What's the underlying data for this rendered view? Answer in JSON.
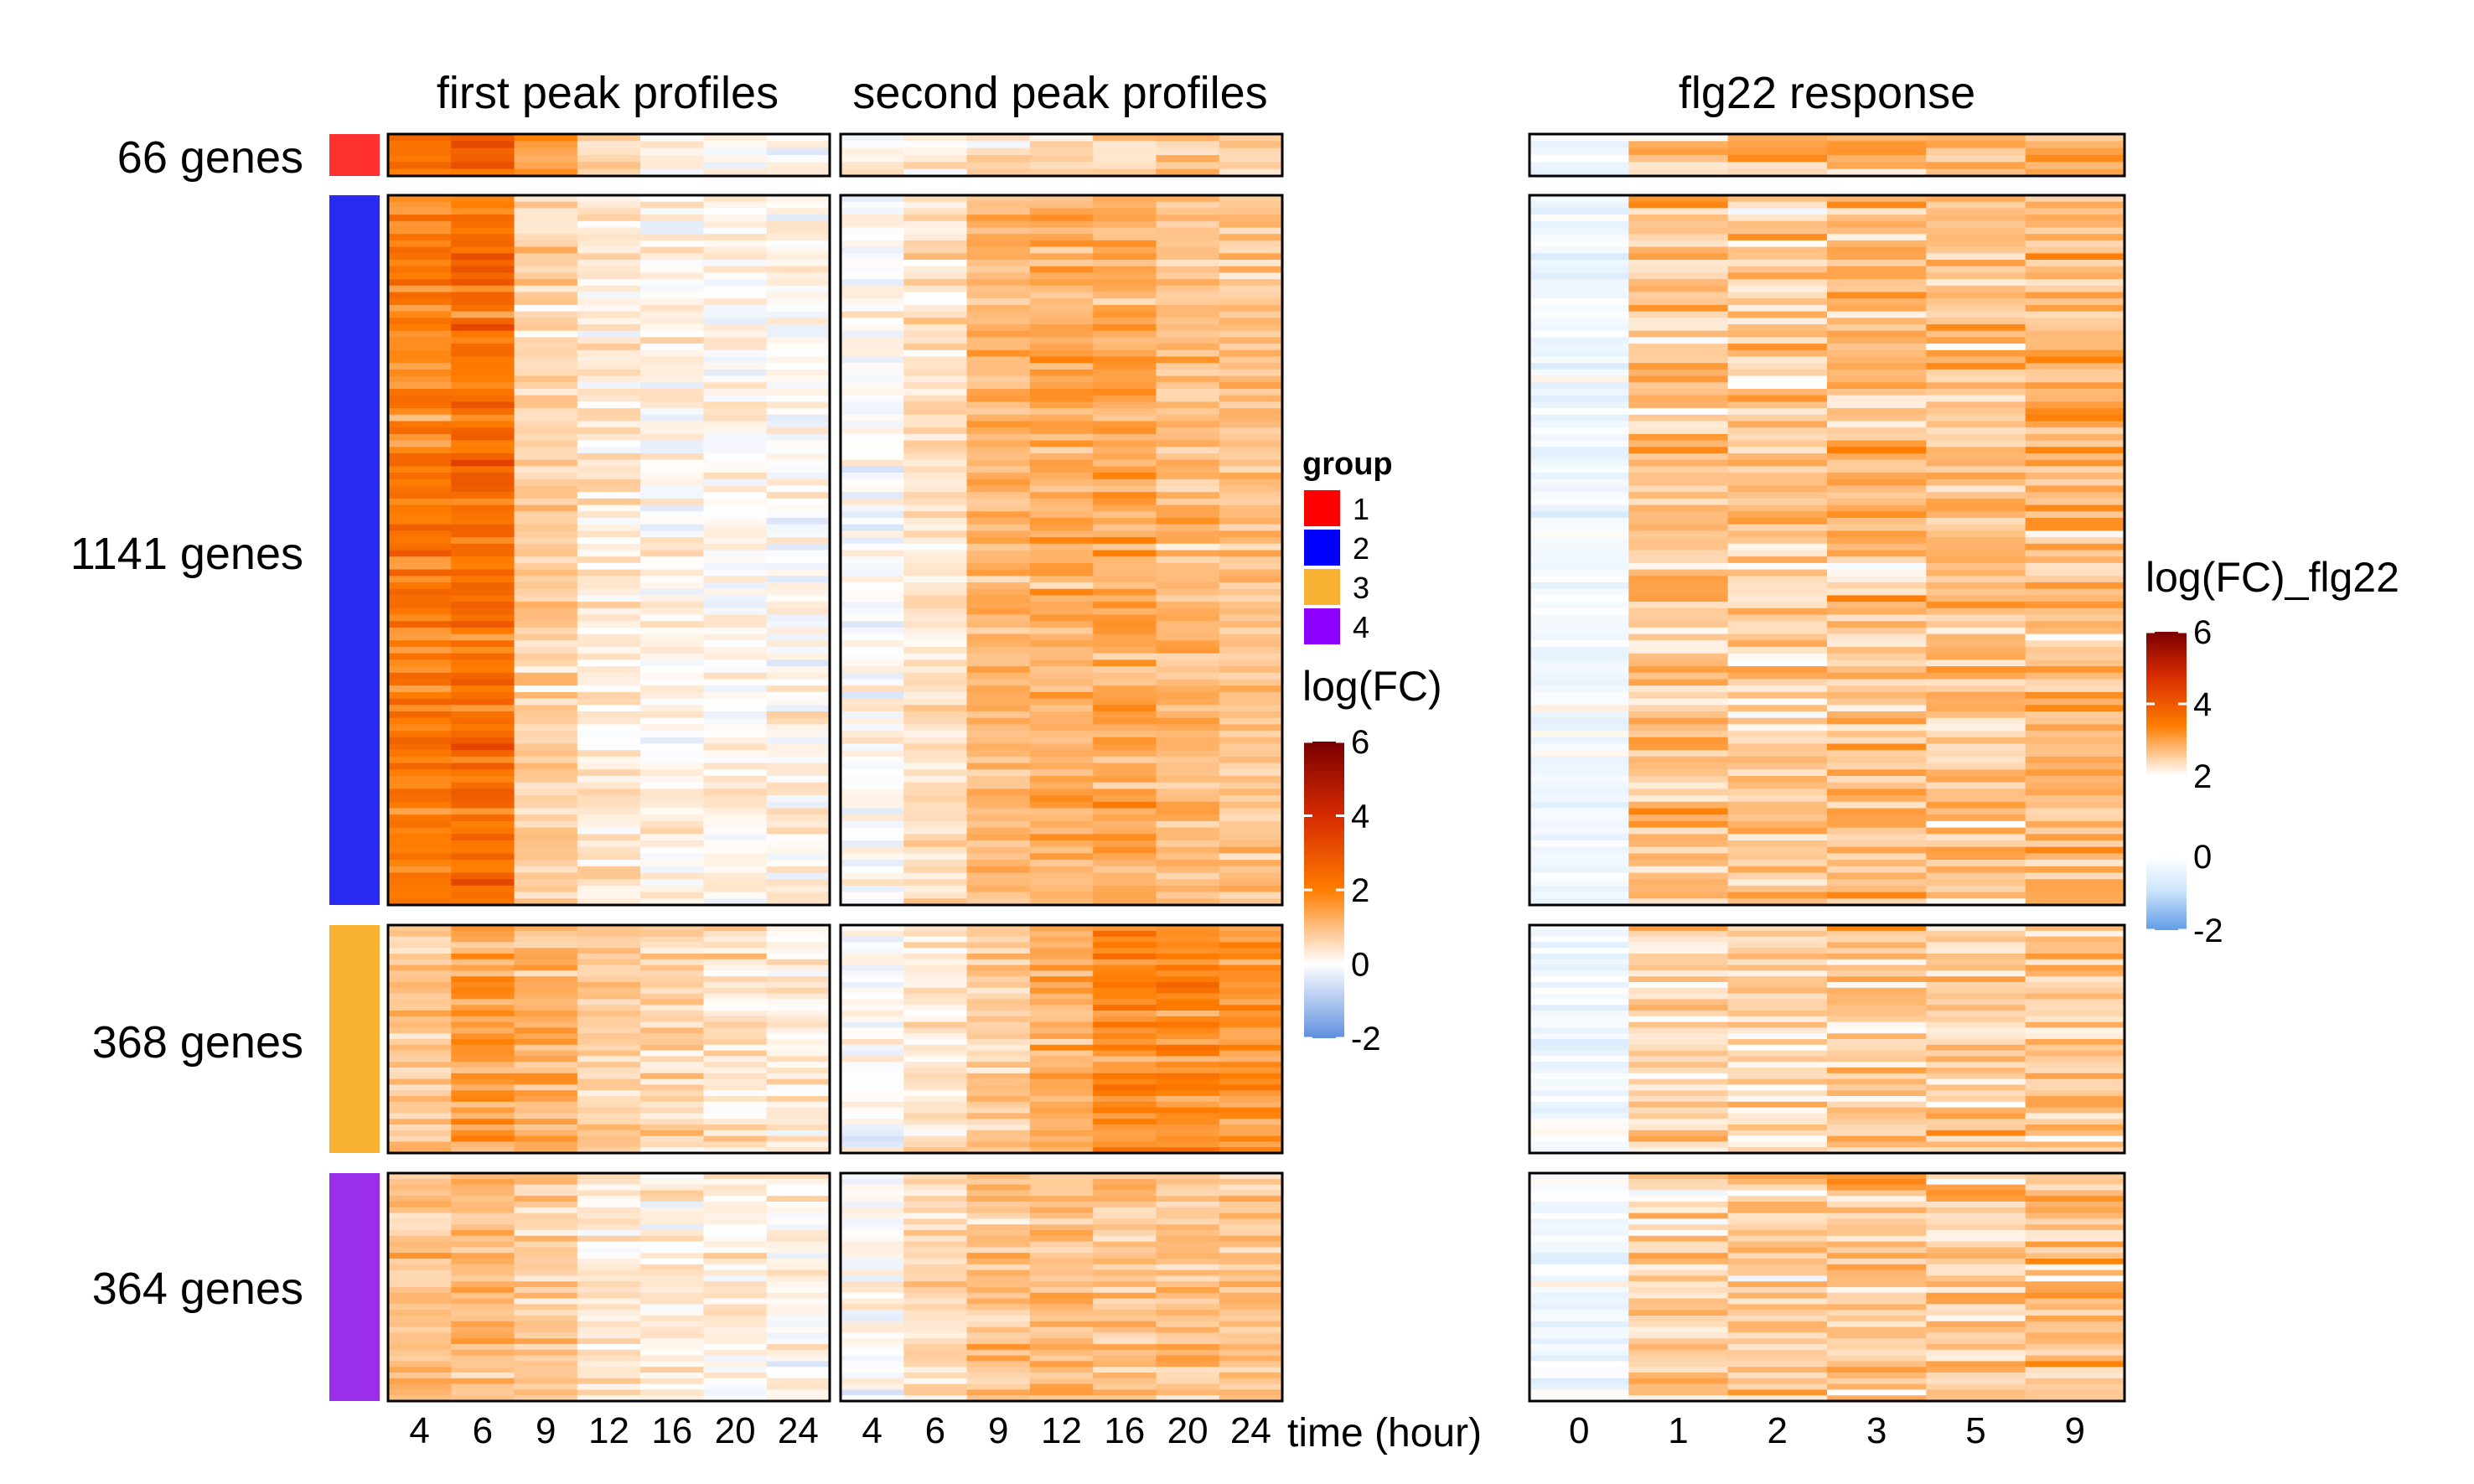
{
  "chart_data": {
    "type": "heatmap",
    "panel_titles": {
      "first": "first peak profiles",
      "second": "second peak profiles",
      "flg22": "flg22 response"
    },
    "x_label": "time (hour)",
    "x_peak": [
      "4",
      "6",
      "9",
      "12",
      "16",
      "20",
      "24"
    ],
    "x_flg22": [
      "0",
      "1",
      "2",
      "3",
      "5",
      "9"
    ],
    "rows": [
      {
        "group": "1",
        "label": "66 genes",
        "genes": 66,
        "color": "#ff3030",
        "first_mean": [
          2.2,
          2.6,
          1.4,
          0.6,
          0.2,
          0.1,
          0.05
        ],
        "second_mean": [
          0.1,
          0.3,
          0.5,
          0.5,
          0.7,
          0.8,
          0.8
        ],
        "flg22_mean": [
          -0.3,
          1.0,
          1.1,
          1.3,
          1.2,
          1.3
        ]
      },
      {
        "group": "2",
        "label": "1141 genes",
        "genes": 1141,
        "color": "#2a2af2",
        "first_mean": [
          2.0,
          2.3,
          0.7,
          0.3,
          0.15,
          0.1,
          0.1
        ],
        "second_mean": [
          0.05,
          0.5,
          1.1,
          1.2,
          1.3,
          1.0,
          0.9
        ],
        "flg22_mean": [
          -0.4,
          0.9,
          0.8,
          1.0,
          1.0,
          1.1
        ]
      },
      {
        "group": "3",
        "label": "368 genes",
        "genes": 368,
        "color": "#f9b233",
        "first_mean": [
          0.8,
          1.4,
          1.2,
          0.8,
          0.6,
          0.4,
          0.3
        ],
        "second_mean": [
          0.0,
          0.3,
          0.8,
          1.3,
          1.8,
          1.8,
          1.6
        ],
        "flg22_mean": [
          -0.4,
          0.6,
          0.6,
          0.8,
          0.8,
          0.8
        ]
      },
      {
        "group": "4",
        "label": "364 genes",
        "genes": 364,
        "color": "#9b2ee8",
        "first_mean": [
          0.9,
          1.1,
          0.8,
          0.4,
          0.25,
          0.2,
          0.15
        ],
        "second_mean": [
          0.0,
          0.6,
          0.9,
          1.0,
          1.0,
          1.0,
          1.0
        ],
        "flg22_mean": [
          -0.2,
          0.7,
          0.7,
          0.9,
          0.8,
          0.8
        ]
      }
    ],
    "legend_group": {
      "title": "group",
      "items": [
        {
          "label": "1",
          "color": "#ff0000"
        },
        {
          "label": "2",
          "color": "#0000ff"
        },
        {
          "label": "3",
          "color": "#f9b233"
        },
        {
          "label": "4",
          "color": "#8b00ff"
        }
      ]
    },
    "legend_fc": {
      "title": "log(FC)",
      "ticks": [
        "6",
        "4",
        "2",
        "0",
        "-2"
      ],
      "range": [
        -2,
        6
      ],
      "stops": [
        "#5f8fe0",
        "#ffffff",
        "#ff7d00",
        "#d62a00",
        "#7a0000"
      ]
    },
    "legend_flg22": {
      "title": "log(FC)_flg22",
      "ticks_upper": [
        "6",
        "4",
        "2"
      ],
      "ticks_lower": [
        "0",
        "-2"
      ],
      "stops_upper": [
        "#ffffff",
        "#ff7d00",
        "#d62a00",
        "#7a0000"
      ],
      "stops_lower": [
        "#ffffff",
        "#cfe6fb",
        "#5f9de8"
      ]
    }
  }
}
